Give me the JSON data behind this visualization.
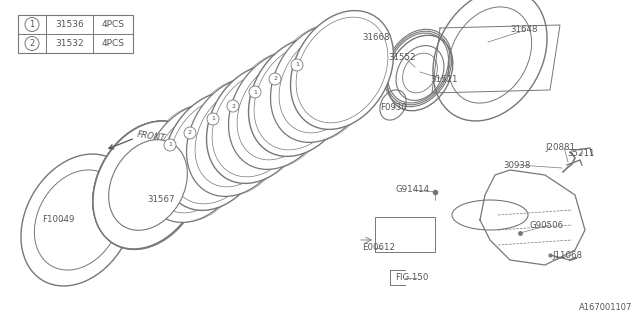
{
  "bg_color": "#ffffff",
  "line_color": "#777777",
  "text_color": "#555555",
  "fig_width": 6.4,
  "fig_height": 3.2,
  "dpi": 100,
  "title_code": "A167001107",
  "legend": [
    {
      "num": "1",
      "part": "31536",
      "qty": "4PCS"
    },
    {
      "num": "2",
      "part": "31532",
      "qty": "4PCS"
    }
  ]
}
